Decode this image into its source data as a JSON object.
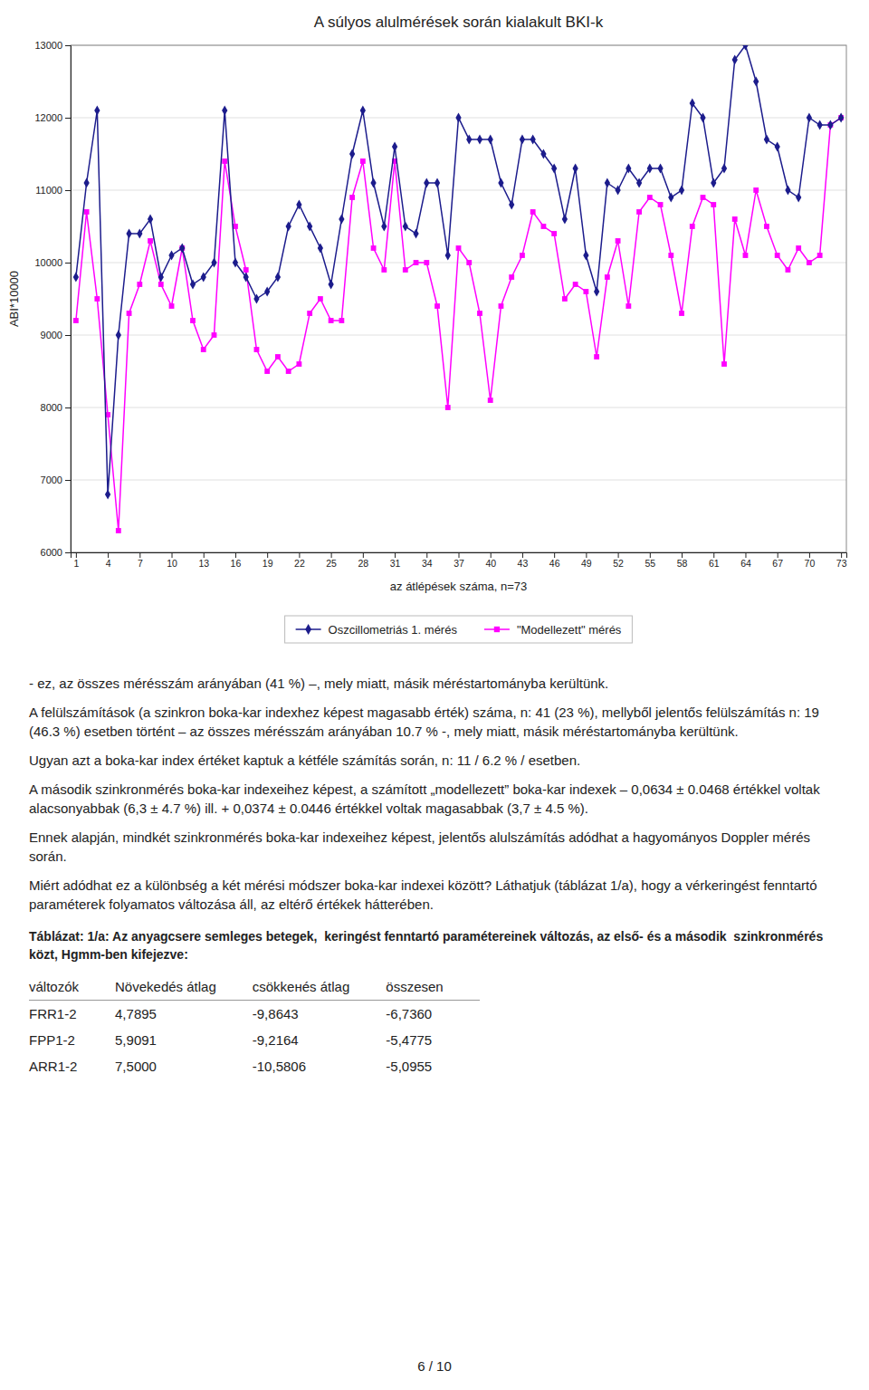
{
  "chart_data": {
    "type": "line",
    "title": "A súlyos alulmérések során kialakult BKI-k",
    "x_label": "az átlépések száma, n=73",
    "y_label": "ABI*10000",
    "x": [
      1,
      2,
      3,
      4,
      5,
      6,
      7,
      8,
      9,
      10,
      11,
      12,
      13,
      14,
      15,
      16,
      17,
      18,
      19,
      20,
      21,
      22,
      23,
      24,
      25,
      26,
      27,
      28,
      29,
      30,
      31,
      32,
      33,
      34,
      35,
      36,
      37,
      38,
      39,
      40,
      41,
      42,
      43,
      44,
      45,
      46,
      47,
      48,
      49,
      50,
      51,
      52,
      53,
      54,
      55,
      56,
      57,
      58,
      59,
      60,
      61,
      62,
      63,
      64,
      65,
      66,
      67,
      68,
      69,
      70,
      71,
      72,
      73
    ],
    "xlim": [
      0.5,
      73.5
    ],
    "xticks": [
      1,
      4,
      7,
      10,
      13,
      16,
      19,
      22,
      25,
      28,
      31,
      34,
      37,
      40,
      43,
      46,
      49,
      52,
      55,
      58,
      61,
      64,
      67,
      70,
      73
    ],
    "ylim": [
      6000,
      13000
    ],
    "yticks": [
      6000,
      7000,
      8000,
      9000,
      10000,
      11000,
      12000,
      13000
    ],
    "grid": "y",
    "legend": "bottom",
    "series": [
      {
        "name": "Oszcillometriás 1. mérés",
        "color": "#1C1C8C",
        "marker": "diamond",
        "values": [
          9800,
          11100,
          12100,
          6800,
          9000,
          10400,
          10400,
          10600,
          9800,
          10100,
          10200,
          9700,
          9800,
          10000,
          12100,
          10000,
          9800,
          9500,
          9600,
          9800,
          10500,
          10800,
          10500,
          10200,
          9700,
          10600,
          11500,
          12100,
          11100,
          10500,
          11600,
          10500,
          10400,
          11100,
          11100,
          10100,
          12000,
          11700,
          11700,
          11700,
          11100,
          10800,
          11700,
          11700,
          11500,
          11300,
          10600,
          11300,
          10100,
          9600,
          11100,
          11000,
          11300,
          11100,
          11300,
          11300,
          10900,
          11000,
          12200,
          12000,
          11100,
          11300,
          12800,
          13000,
          12500,
          11700,
          11600,
          11000,
          10900,
          12000,
          11900,
          11900,
          12000
        ]
      },
      {
        "name": "\"Modellezett\" mérés",
        "color": "#FF00FF",
        "marker": "square",
        "values": [
          9200,
          10700,
          9500,
          7900,
          6300,
          9300,
          9700,
          10300,
          9700,
          9400,
          10200,
          9200,
          8800,
          9000,
          11400,
          10500,
          9900,
          8800,
          8500,
          8700,
          8500,
          8600,
          9300,
          9500,
          9200,
          9200,
          10900,
          11400,
          10200,
          9900,
          11400,
          9900,
          10000,
          10000,
          9400,
          8000,
          10200,
          10000,
          9300,
          8100,
          9400,
          9800,
          10100,
          10700,
          10500,
          10400,
          9500,
          9700,
          9600,
          8700,
          9800,
          10300,
          9400,
          10700,
          10900,
          10800,
          10100,
          9300,
          10500,
          10900,
          10800,
          8600,
          10600,
          10100,
          11000,
          10500,
          10100,
          9900,
          10200,
          10000,
          10100,
          11900,
          12000
        ]
      }
    ]
  },
  "page": {
    "paragraphs": [
      "- ez, az összes mérésszám arányában (41 %) –, mely miatt, másik méréstartományba kerültünk.",
      "A felülszámítások (a szinkron boka-kar indexhez képest magasabb érték) száma, n: 41 (23 %), mellyből jelentős felülszámítás n: 19 (46.3 %) esetben történt – az összes mérésszám arányában 10.7 % -, mely miatt, másik méréstartományba kerültünk.",
      "Ugyan azt a boka-kar index értéket kaptuk a kétféle számítás során, n: 11 / 6.2 % / esetben.",
      "A második szinkronmérés boka-kar indexeihez képest, a számított „modellezett” boka-kar indexek – 0,0634 ± 0.0468 értékkel voltak alacsonyabbak (6,3 ± 4.7 %) ill. + 0,0374 ± 0.0446 értékkel voltak magasabbak (3,7 ± 4.5 %).",
      "Ennek alapján, mindkét szinkronmérés boka-kar indexeihez képest, jelentős alulszámítás adódhat a hagyományos Doppler mérés során.",
      "Miért adódhat ez a különbség a két mérési módszer boka-kar indexei között? Láthatjuk (táblázat 1/a), hogy a vérkeringést fenntartó paraméterek folyamatos változása áll, az eltérő értékek hátterében."
    ],
    "table_caption": "Táblázat: 1/a: Az anyagcsere semleges betegek,  keringést fenntartó paramétereinek változás, az első- és a második  szinkronmérés közt, Hgmm-ben kifejezve:",
    "table": {
      "headers": [
        "változók",
        "Növekedés átlag",
        "csökkенés átlag",
        "összesen"
      ],
      "rows": [
        [
          "FRR1-2",
          "4,7895",
          "-9,8643",
          "-6,7360"
        ],
        [
          "FPP1-2",
          "5,9091",
          "-9,2164",
          "-5,4775"
        ],
        [
          "ARR1-2",
          "7,5000",
          "-10,5806",
          "-5,0955"
        ]
      ]
    },
    "page_number": "6 / 10"
  }
}
